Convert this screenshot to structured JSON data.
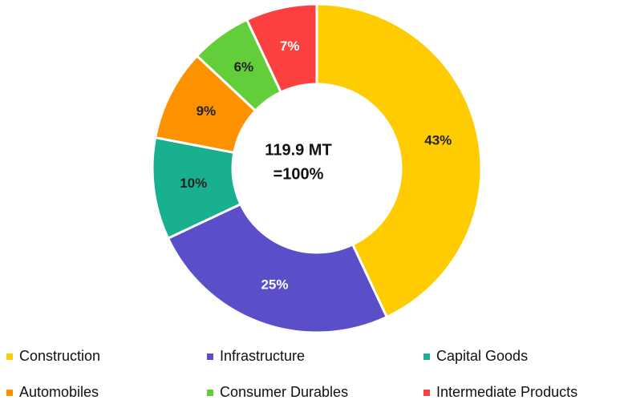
{
  "chart_data": {
    "type": "donut",
    "categories": [
      "Construction",
      "Infrastructure",
      "Capital Goods",
      "Automobiles",
      "Consumer Durables",
      "Intermediate Products"
    ],
    "values": [
      43,
      25,
      10,
      9,
      6,
      7
    ],
    "value_labels": [
      "43%",
      "25%",
      "10%",
      "9%",
      "6%",
      "7%"
    ],
    "colors": [
      "#fecc00",
      "#5b4fc9",
      "#19b08f",
      "#fc9200",
      "#62cf3a",
      "#fc4040"
    ],
    "label_colors": [
      "#222222",
      "#ffffff",
      "#222222",
      "#222222",
      "#222222",
      "#ffffff"
    ],
    "center_label": [
      "119.9 MT",
      "=100%"
    ],
    "legend": "bottom"
  }
}
